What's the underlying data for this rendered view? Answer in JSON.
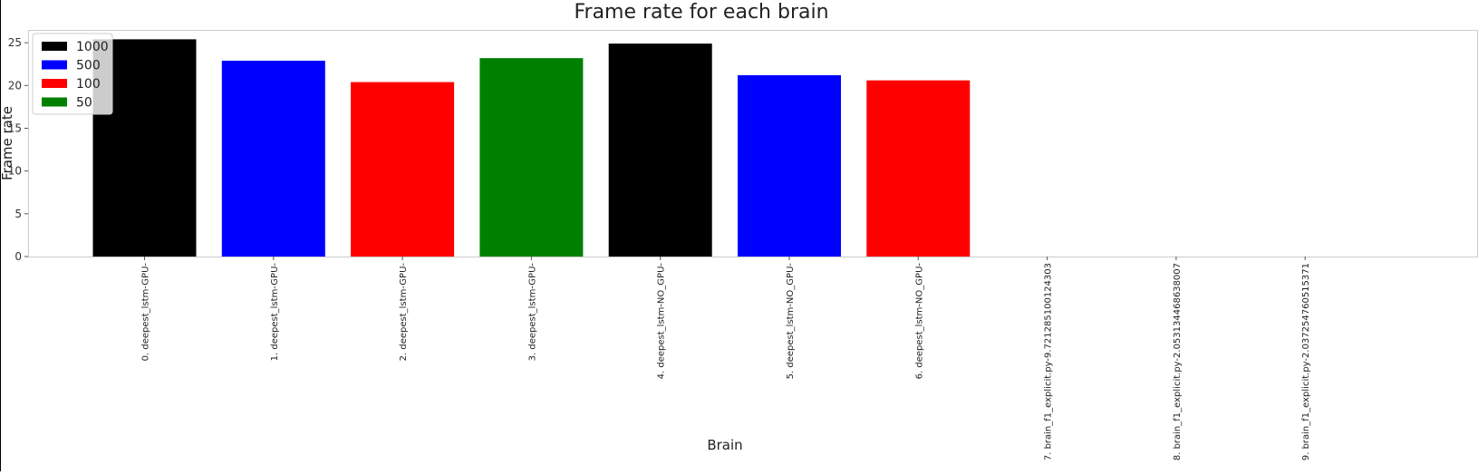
{
  "chart_data": {
    "type": "bar",
    "title": "Frame rate for each brain",
    "xlabel": "Brain",
    "ylabel": "Frame rate",
    "ylim": [
      0,
      26.5
    ],
    "yticks": [
      0,
      5,
      10,
      15,
      20,
      25
    ],
    "grid": false,
    "legend_position": "top-left",
    "categories": [
      "0. deepest_lstm-GPU-",
      "1. deepest_lstm-GPU-",
      "2. deepest_lstm-GPU-",
      "3. deepest_lstm-GPU-",
      "4. deepest_lstm-NO_GPU-",
      "5. deepest_lstm-NO_GPU-",
      "6. deepest_lstm-NO_GPU-",
      "7. brain_f1_explicit.py-9.721285100124303",
      "8. brain_f1_explicit.py-2.053134468638007",
      "9. brain_f1_explicit.py-2.037254760515371"
    ],
    "values": [
      25.4,
      22.9,
      20.4,
      23.2,
      24.9,
      21.2,
      20.6,
      0,
      0,
      0
    ],
    "bar_colors": [
      "#000000",
      "#0000ff",
      "#ff0000",
      "#008000",
      "#000000",
      "#0000ff",
      "#ff0000",
      "#000000",
      "#0000ff",
      "#ff0000"
    ],
    "legend": [
      {
        "label": "1000",
        "color": "#000000"
      },
      {
        "label": "500",
        "color": "#0000ff"
      },
      {
        "label": "100",
        "color": "#ff0000"
      },
      {
        "label": "50",
        "color": "#008000"
      }
    ]
  }
}
